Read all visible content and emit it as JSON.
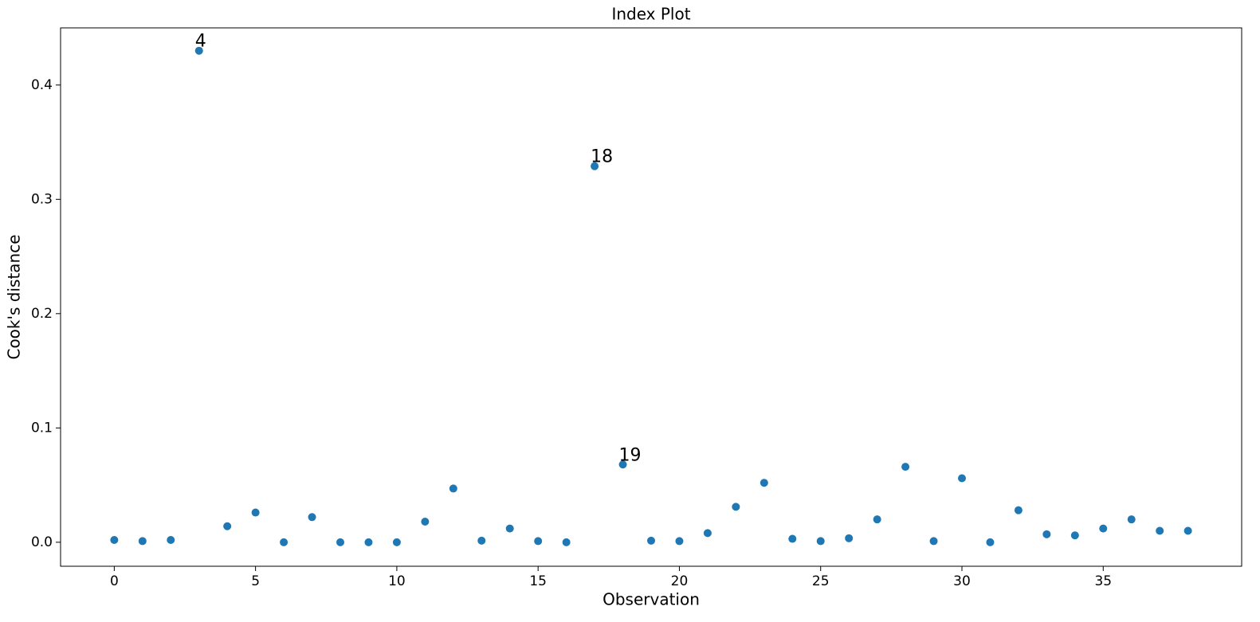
{
  "chart_data": {
    "type": "scatter",
    "title": "Index Plot",
    "x_label": "Observation",
    "y_label": "Cook's distance",
    "color": "#1f77b4",
    "x": [
      0,
      1,
      2,
      3,
      4,
      5,
      6,
      7,
      8,
      9,
      10,
      11,
      12,
      13,
      14,
      15,
      16,
      17,
      18,
      19,
      20,
      21,
      22,
      23,
      24,
      25,
      26,
      27,
      28,
      29,
      30,
      31,
      32,
      33,
      34,
      35,
      36,
      37,
      38
    ],
    "values": [
      0.002,
      0.001,
      0.002,
      0.43,
      0.014,
      0.026,
      0.0,
      0.022,
      0.0,
      0.0,
      0.0,
      0.018,
      0.047,
      0.0014,
      0.012,
      0.001,
      0.0,
      0.329,
      0.068,
      0.0014,
      0.001,
      0.008,
      0.031,
      0.052,
      0.003,
      0.001,
      0.0035,
      0.02,
      0.066,
      0.001,
      0.056,
      0.0,
      0.028,
      0.007,
      0.006,
      0.012,
      0.02,
      0.01,
      0.01
    ],
    "annotations": [
      {
        "text": "4",
        "x": 3,
        "y": 0.43
      },
      {
        "text": "18",
        "x": 17,
        "y": 0.329
      },
      {
        "text": "19",
        "x": 18,
        "y": 0.068
      }
    ],
    "xlim": [
      -1.9,
      39.9
    ],
    "ylim": [
      -0.021,
      0.45
    ],
    "xticks": [
      0,
      5,
      10,
      15,
      20,
      25,
      30,
      35
    ],
    "yticks": [
      {
        "value": 0,
        "label": "0.0"
      },
      0.1,
      0.2,
      0.3,
      0.4
    ],
    "grid": false
  }
}
